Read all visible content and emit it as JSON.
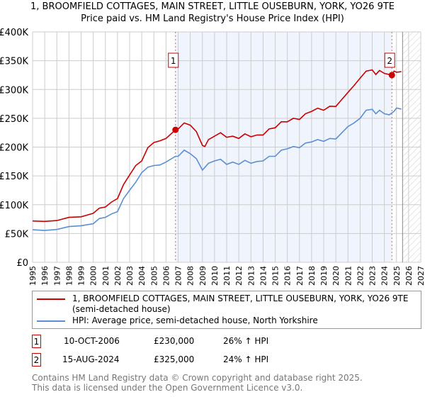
{
  "title_line1": "1, BROOMFIELD COTTAGES, MAIN STREET, LITTLE OUSEBURN, YORK, YO26 9TE",
  "title_line2": "Price paid vs. HM Land Registry's House Price Index (HPI)",
  "chart_data": {
    "type": "line",
    "title": "1, BROOMFIELD COTTAGES, MAIN STREET, LITTLE OUSEBURN, YORK, YO26 9TE — Price paid vs. HM Land Registry's House Price Index (HPI)",
    "xlim": [
      1995,
      2027
    ],
    "ylim": [
      0,
      400000
    ],
    "x_ticks": [
      "1995",
      "1996",
      "1997",
      "1998",
      "1999",
      "2000",
      "2001",
      "2002",
      "2003",
      "2004",
      "2005",
      "2006",
      "2007",
      "2008",
      "2009",
      "2010",
      "2011",
      "2012",
      "2013",
      "2014",
      "2015",
      "2016",
      "2017",
      "2018",
      "2019",
      "2020",
      "2021",
      "2022",
      "2023",
      "2024",
      "2025",
      "2026",
      "2027"
    ],
    "y_ticks": [
      {
        "v": 0,
        "label": "£0"
      },
      {
        "v": 50000,
        "label": "£50K"
      },
      {
        "v": 100000,
        "label": "£100K"
      },
      {
        "v": 150000,
        "label": "£150K"
      },
      {
        "v": 200000,
        "label": "£200K"
      },
      {
        "v": 250000,
        "label": "£250K"
      },
      {
        "v": 300000,
        "label": "£300K"
      },
      {
        "v": 350000,
        "label": "£350K"
      },
      {
        "v": 400000,
        "label": "£400K"
      }
    ],
    "grid": true,
    "shaded_range": [
      2006.78,
      2024.62
    ],
    "hatched_from": 2025.5,
    "series": [
      {
        "name": "1, BROOMFIELD COTTAGES, MAIN STREET, LITTLE OUSEBURN, YORK, YO26 9TE (semi-detached house)",
        "color": "#cc0000",
        "x": [
          1995,
          1996,
          1997,
          1998,
          1999,
          2000,
          2000.5,
          2001,
          2001.5,
          2002,
          2002.5,
          2003,
          2003.5,
          2004,
          2004.5,
          2005,
          2005.5,
          2006,
          2006.78,
          2007,
          2007.5,
          2008,
          2008.5,
          2009,
          2009.2,
          2009.5,
          2010,
          2010.5,
          2011,
          2011.5,
          2012,
          2012.5,
          2013,
          2013.5,
          2014,
          2014.5,
          2015,
          2015.5,
          2016,
          2016.5,
          2017,
          2017.5,
          2018,
          2018.5,
          2019,
          2019.5,
          2020,
          2020.5,
          2021,
          2021.5,
          2022,
          2022.5,
          2023,
          2023.3,
          2023.6,
          2024,
          2024.62,
          2024.8,
          2025,
          2025.4
        ],
        "y": [
          71700,
          71000,
          72500,
          78000,
          79000,
          85000,
          94000,
          96000,
          104500,
          110700,
          135000,
          151600,
          168000,
          176000,
          199000,
          208000,
          211000,
          215000,
          230000,
          231500,
          242000,
          238000,
          227000,
          203000,
          201000,
          213000,
          219000,
          225000,
          217000,
          219000,
          215000,
          223000,
          218000,
          221000,
          221000,
          231500,
          233600,
          244000,
          244000,
          250000,
          248000,
          258000,
          262000,
          267600,
          264000,
          271000,
          270500,
          283000,
          295000,
          307000,
          319700,
          332000,
          334000,
          326000,
          333000,
          328000,
          325000,
          332000,
          330000,
          331000
        ]
      },
      {
        "name": "HPI: Average price, semi-detached house, North Yorkshire",
        "color": "#5b8fd4",
        "x": [
          1995,
          1996,
          1997,
          1998,
          1999,
          2000,
          2000.5,
          2001,
          2001.5,
          2002,
          2002.5,
          2003,
          2003.5,
          2004,
          2004.5,
          2005,
          2005.5,
          2006,
          2006.78,
          2007,
          2007.5,
          2008,
          2008.5,
          2009,
          2009.5,
          2010,
          2010.5,
          2011,
          2011.5,
          2012,
          2012.5,
          2013,
          2013.5,
          2014,
          2014.5,
          2015,
          2015.5,
          2016,
          2016.5,
          2017,
          2017.5,
          2018,
          2018.5,
          2019,
          2019.5,
          2020,
          2020.5,
          2021,
          2021.5,
          2022,
          2022.5,
          2023,
          2023.3,
          2023.6,
          2024,
          2024.4,
          2024.8,
          2025,
          2025.4
        ],
        "y": [
          56500,
          55300,
          57000,
          62000,
          63500,
          67000,
          76000,
          78000,
          84000,
          88000,
          110700,
          125000,
          139000,
          155700,
          165000,
          168000,
          169000,
          174000,
          184000,
          184000,
          194700,
          188500,
          180000,
          160000,
          172000,
          176000,
          179000,
          170000,
          174000,
          170000,
          177000,
          172000,
          175000,
          176000,
          184000,
          184000,
          194700,
          197000,
          201000,
          199000,
          207000,
          209000,
          213000,
          210000,
          215000,
          214000,
          225000,
          235700,
          242000,
          250000,
          264000,
          265600,
          258000,
          264000,
          258000,
          256000,
          262000,
          268000,
          266000
        ]
      }
    ],
    "sales": [
      {
        "id": "1",
        "x": 2006.78,
        "y": 230000
      },
      {
        "id": "2",
        "x": 2024.62,
        "y": 325000
      }
    ]
  },
  "legend": {
    "property": "1, BROOMFIELD COTTAGES, MAIN STREET, LITTLE OUSEBURN, YORK, YO26 9TE (semi-detached house)",
    "hpi": "HPI: Average price, semi-detached house, North Yorkshire"
  },
  "transactions": [
    {
      "id": "1",
      "date": "10-OCT-2006",
      "price": "£230,000",
      "hpi": "26% ↑ HPI"
    },
    {
      "id": "2",
      "date": "15-AUG-2024",
      "price": "£325,000",
      "hpi": "24% ↑ HPI"
    }
  ],
  "footer_line1": "Contains HM Land Registry data © Crown copyright and database right 2025.",
  "footer_line2": "This data is licensed under the Open Government Licence v3.0."
}
